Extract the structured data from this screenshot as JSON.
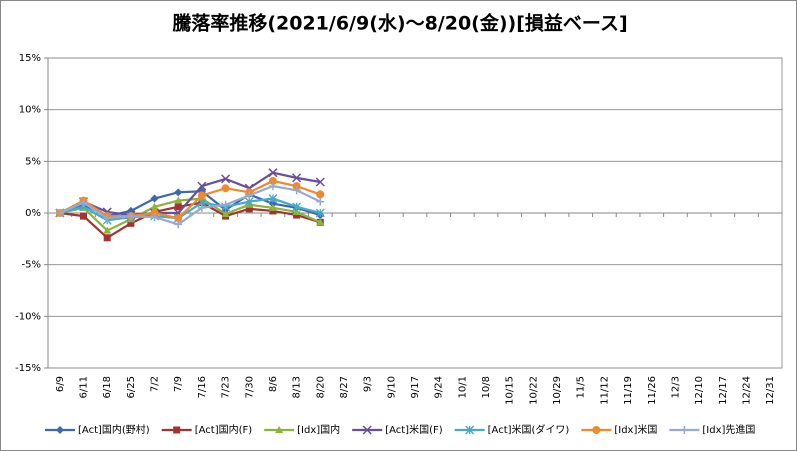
{
  "chart_data": {
    "type": "line",
    "title": "騰落率推移(2021/6/9(水)～8/20(金))[損益ベース]",
    "categories": [
      "6/9",
      "6/11",
      "6/18",
      "6/25",
      "7/2",
      "7/9",
      "7/16",
      "7/23",
      "7/30",
      "8/6",
      "8/13",
      "8/20",
      "8/27",
      "9/3",
      "9/10",
      "9/17",
      "9/24",
      "10/1",
      "10/8",
      "10/15",
      "10/22",
      "10/29",
      "11/5",
      "11/12",
      "11/19",
      "11/26",
      "12/3",
      "12/10",
      "12/17",
      "12/24",
      "12/31"
    ],
    "ylim": [
      -15,
      15
    ],
    "yticks": [
      {
        "value": -15,
        "label": "-15%"
      },
      {
        "value": -10,
        "label": "-10%"
      },
      {
        "value": -5,
        "label": "-5%"
      },
      {
        "value": 0,
        "label": "0%"
      },
      {
        "value": 5,
        "label": "5%"
      },
      {
        "value": 10,
        "label": "10%"
      },
      {
        "value": 15,
        "label": "15%"
      }
    ],
    "grid": true,
    "legend": "bottom",
    "series": [
      {
        "name": "[Act]国内(野村)",
        "color": "#3d67b0",
        "marker": "diamond",
        "values": [
          0,
          0.8,
          -0.3,
          0.2,
          1.4,
          2.0,
          2.1,
          0.3,
          1.8,
          0.9,
          0.5,
          -0.2,
          null,
          null,
          null,
          null,
          null,
          null,
          null,
          null,
          null,
          null,
          null,
          null,
          null,
          null,
          null,
          null,
          null,
          null,
          null
        ]
      },
      {
        "name": "[Act]国内(F)",
        "color": "#a4322e",
        "marker": "square",
        "values": [
          0,
          -0.3,
          -2.4,
          -1.0,
          0.1,
          0.6,
          1.0,
          -0.3,
          0.4,
          0.2,
          -0.2,
          -0.9,
          null,
          null,
          null,
          null,
          null,
          null,
          null,
          null,
          null,
          null,
          null,
          null,
          null,
          null,
          null,
          null,
          null,
          null,
          null
        ]
      },
      {
        "name": "[Idx]国内",
        "color": "#8cb33c",
        "marker": "triangle",
        "values": [
          0,
          0.5,
          -1.7,
          -0.6,
          0.6,
          1.2,
          1.4,
          -0.1,
          0.8,
          0.5,
          0.1,
          -0.9,
          null,
          null,
          null,
          null,
          null,
          null,
          null,
          null,
          null,
          null,
          null,
          null,
          null,
          null,
          null,
          null,
          null,
          null,
          null
        ]
      },
      {
        "name": "[Act]米国(F)",
        "color": "#6c4e98",
        "marker": "x",
        "values": [
          0,
          1.1,
          0.1,
          -0.2,
          0,
          0,
          2.6,
          3.3,
          2.4,
          3.9,
          3.4,
          3.0,
          null,
          null,
          null,
          null,
          null,
          null,
          null,
          null,
          null,
          null,
          null,
          null,
          null,
          null,
          null,
          null,
          null,
          null,
          null
        ]
      },
      {
        "name": "[Act]米国(ダイワ)",
        "color": "#46aac4",
        "marker": "star",
        "values": [
          0,
          0.6,
          -0.7,
          -0.4,
          -0.3,
          -0.5,
          1.0,
          0.6,
          1.1,
          1.4,
          0.6,
          0.0,
          null,
          null,
          null,
          null,
          null,
          null,
          null,
          null,
          null,
          null,
          null,
          null,
          null,
          null,
          null,
          null,
          null,
          null,
          null
        ]
      },
      {
        "name": "[Idx]米国",
        "color": "#f0892c",
        "marker": "circle",
        "values": [
          0,
          1.2,
          -0.3,
          -0.3,
          0,
          -0.5,
          1.7,
          2.4,
          2.0,
          3.1,
          2.6,
          1.8,
          null,
          null,
          null,
          null,
          null,
          null,
          null,
          null,
          null,
          null,
          null,
          null,
          null,
          null,
          null,
          null,
          null,
          null,
          null
        ]
      },
      {
        "name": "[Idx]先進国",
        "color": "#94aad2",
        "marker": "plus",
        "values": [
          0,
          1.0,
          -0.5,
          -0.3,
          -0.4,
          -1.1,
          0.5,
          0.8,
          1.7,
          2.6,
          2.2,
          1.1,
          null,
          null,
          null,
          null,
          null,
          null,
          null,
          null,
          null,
          null,
          null,
          null,
          null,
          null,
          null,
          null,
          null,
          null,
          null
        ]
      }
    ]
  }
}
